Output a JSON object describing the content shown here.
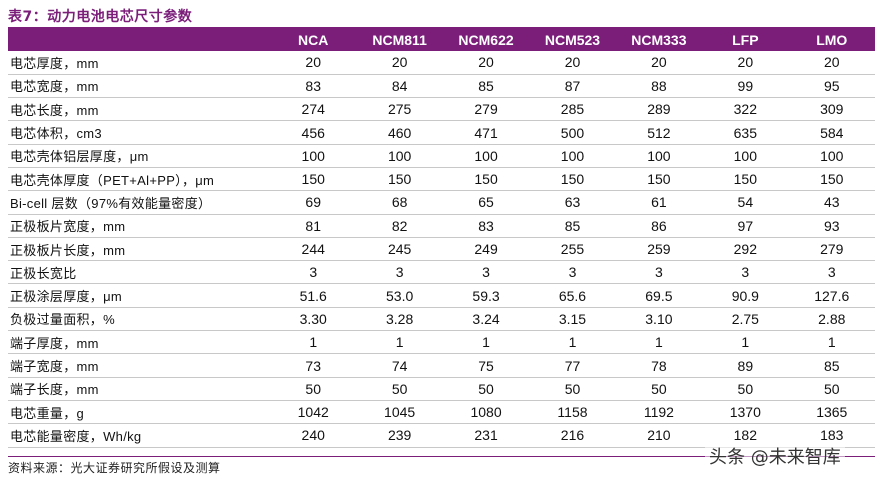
{
  "title": "表7：动力电池电芯尺寸参数",
  "columns": [
    "",
    "NCA",
    "NCM811",
    "NCM622",
    "NCM523",
    "NCM333",
    "LFP",
    "LMO"
  ],
  "rows": [
    {
      "label": "电芯厚度，mm",
      "values": [
        "20",
        "20",
        "20",
        "20",
        "20",
        "20",
        "20"
      ]
    },
    {
      "label": "电芯宽度，mm",
      "values": [
        "83",
        "84",
        "85",
        "87",
        "88",
        "99",
        "95"
      ]
    },
    {
      "label": "电芯长度，mm",
      "values": [
        "274",
        "275",
        "279",
        "285",
        "289",
        "322",
        "309"
      ]
    },
    {
      "label": "电芯体积，cm3",
      "values": [
        "456",
        "460",
        "471",
        "500",
        "512",
        "635",
        "584"
      ]
    },
    {
      "label": "电芯壳体铝层厚度，μm",
      "values": [
        "100",
        "100",
        "100",
        "100",
        "100",
        "100",
        "100"
      ]
    },
    {
      "label": "电芯壳体厚度（PET+Al+PP），μm",
      "values": [
        "150",
        "150",
        "150",
        "150",
        "150",
        "150",
        "150"
      ]
    },
    {
      "label": "Bi-cell 层数（97%有效能量密度）",
      "values": [
        "69",
        "68",
        "65",
        "63",
        "61",
        "54",
        "43"
      ]
    },
    {
      "label": "正极板片宽度，mm",
      "values": [
        "81",
        "82",
        "83",
        "85",
        "86",
        "97",
        "93"
      ]
    },
    {
      "label": "正极板片长度，mm",
      "values": [
        "244",
        "245",
        "249",
        "255",
        "259",
        "292",
        "279"
      ]
    },
    {
      "label": "正极长宽比",
      "values": [
        "3",
        "3",
        "3",
        "3",
        "3",
        "3",
        "3"
      ]
    },
    {
      "label": "正极涂层厚度，μm",
      "values": [
        "51.6",
        "53.0",
        "59.3",
        "65.6",
        "69.5",
        "90.9",
        "127.6"
      ]
    },
    {
      "label": "负极过量面积，%",
      "values": [
        "3.30",
        "3.28",
        "3.24",
        "3.15",
        "3.10",
        "2.75",
        "2.88"
      ]
    },
    {
      "label": "端子厚度，mm",
      "values": [
        "1",
        "1",
        "1",
        "1",
        "1",
        "1",
        "1"
      ]
    },
    {
      "label": "端子宽度，mm",
      "values": [
        "73",
        "74",
        "75",
        "77",
        "78",
        "89",
        "85"
      ]
    },
    {
      "label": "端子长度，mm",
      "values": [
        "50",
        "50",
        "50",
        "50",
        "50",
        "50",
        "50"
      ]
    },
    {
      "label": "电芯重量，g",
      "values": [
        "1042",
        "1045",
        "1080",
        "1158",
        "1192",
        "1370",
        "1365"
      ]
    },
    {
      "label": "电芯能量密度，Wh/kg",
      "values": [
        "240",
        "239",
        "231",
        "216",
        "210",
        "182",
        "183"
      ]
    }
  ],
  "source": "资料来源：光大证券研究所假设及测算",
  "watermark": "头条 @未来智库"
}
